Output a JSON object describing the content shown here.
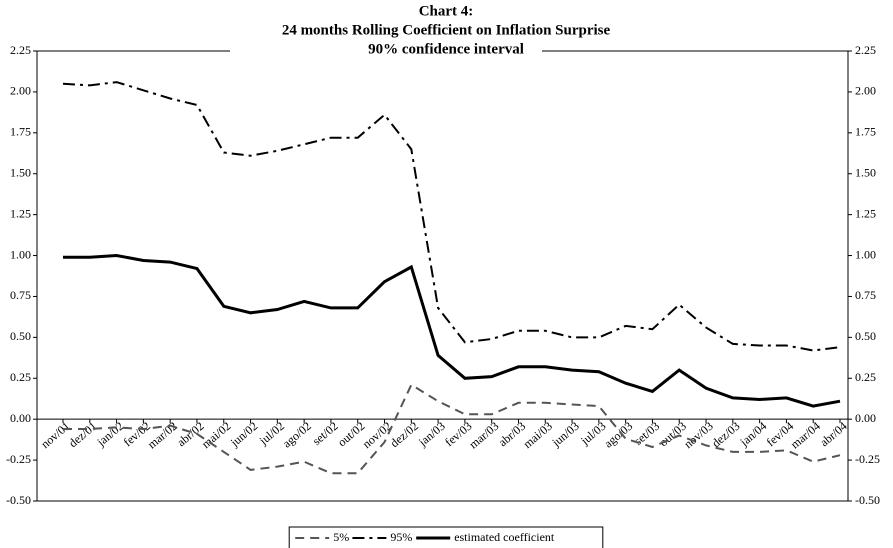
{
  "chart_data": {
    "type": "line",
    "title": [
      "Chart 4:",
      "24 months Rolling Coefficient on Inflation Surprise",
      "90% confidence interval"
    ],
    "categories": [
      "nov/01",
      "dez/01",
      "jan/02",
      "fev/02",
      "mar/02",
      "abr/02",
      "mai/02",
      "jun/02",
      "jul/02",
      "ago/02",
      "set/02",
      "out/02",
      "nov/02",
      "dez/02",
      "jan/03",
      "fev/03",
      "mar/03",
      "abr/03",
      "mai/03",
      "jun/03",
      "jul/03",
      "ago/03",
      "set/03",
      "out/03",
      "nov/03",
      "dez/03",
      "jan/04",
      "fev/04",
      "mar/04",
      "abr/04"
    ],
    "series": [
      {
        "name": "5%",
        "color": "#555555",
        "dash": "dashed",
        "values": [
          -0.06,
          -0.06,
          -0.05,
          -0.06,
          -0.04,
          -0.09,
          -0.2,
          -0.31,
          -0.29,
          -0.26,
          -0.33,
          -0.33,
          -0.14,
          0.21,
          0.11,
          0.03,
          0.03,
          0.1,
          0.1,
          0.09,
          0.08,
          -0.12,
          -0.17,
          -0.1,
          -0.16,
          -0.2,
          -0.2,
          -0.19,
          -0.26,
          -0.22
        ]
      },
      {
        "name": "95%",
        "color": "#000000",
        "dash": "dash-dot",
        "values": [
          2.05,
          2.04,
          2.06,
          2.01,
          1.96,
          1.92,
          1.63,
          1.61,
          1.64,
          1.68,
          1.72,
          1.72,
          1.86,
          1.65,
          0.68,
          0.47,
          0.49,
          0.54,
          0.54,
          0.5,
          0.5,
          0.57,
          0.55,
          0.7,
          0.56,
          0.46,
          0.45,
          0.45,
          0.42,
          0.44
        ]
      },
      {
        "name": "estimated coefficient",
        "color": "#000000",
        "dash": "solid",
        "values": [
          0.99,
          0.99,
          1.0,
          0.97,
          0.96,
          0.92,
          0.69,
          0.65,
          0.67,
          0.72,
          0.68,
          0.68,
          0.84,
          0.93,
          0.39,
          0.25,
          0.26,
          0.32,
          0.32,
          0.3,
          0.29,
          0.22,
          0.17,
          0.3,
          0.19,
          0.13,
          0.12,
          0.13,
          0.08,
          0.11
        ]
      }
    ],
    "ylim": [
      -0.5,
      2.25
    ],
    "yticks": [
      {
        "value": -0.5,
        "label": "-0.50"
      },
      {
        "value": -0.25,
        "label": "-0.25"
      },
      {
        "value": 0,
        "label": "0.00"
      },
      {
        "value": 0.25,
        "label": "0.25"
      },
      {
        "value": 0.5,
        "label": "0.50"
      },
      {
        "value": 0.75,
        "label": "0.75"
      },
      {
        "value": 1,
        "label": "1.00"
      },
      {
        "value": 1.25,
        "label": "1.25"
      },
      {
        "value": 1.5,
        "label": "1.50"
      },
      {
        "value": 1.75,
        "label": "1.75"
      },
      {
        "value": 2,
        "label": "2.00"
      },
      {
        "value": 2.25,
        "label": "2.25"
      }
    ],
    "y2lim": [
      -0.5,
      2.25
    ],
    "y2ticks": [
      {
        "value": -0.5,
        "label": "-0.50"
      },
      {
        "value": -0.25,
        "label": "-0.25"
      },
      {
        "value": 0,
        "label": "0.00"
      },
      {
        "value": 0.25,
        "label": "0.25"
      },
      {
        "value": 0.5,
        "label": "0.50"
      },
      {
        "value": 0.75,
        "label": "0.75"
      },
      {
        "value": 1,
        "label": "1.00"
      },
      {
        "value": 1.25,
        "label": "1.25"
      },
      {
        "value": 1.5,
        "label": "1.50"
      },
      {
        "value": 1.75,
        "label": "1.75"
      },
      {
        "value": 2,
        "label": "2.00"
      },
      {
        "value": 2.25,
        "label": "2.25"
      }
    ],
    "grid": false,
    "legend": "bottom"
  }
}
